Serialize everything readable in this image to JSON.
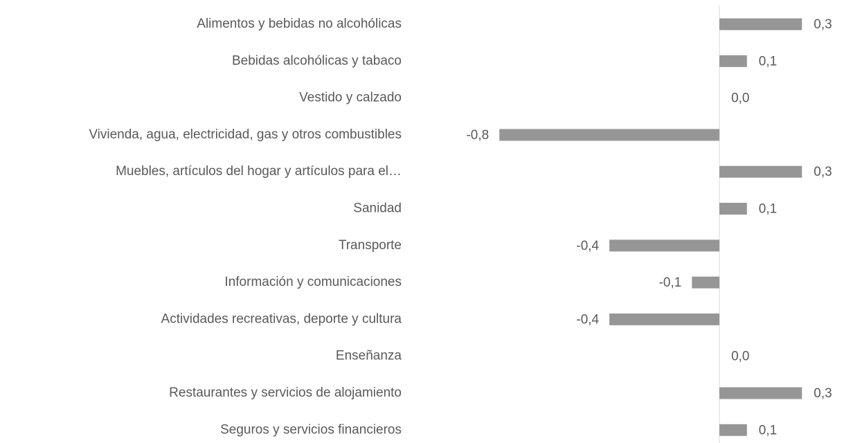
{
  "chart_data": {
    "type": "barh",
    "categories": [
      "Alimentos y bebidas no alcohólicas",
      "Bebidas alcohólicas y tabaco",
      "Vestido y calzado",
      "Vivienda, agua, electricidad, gas y otros combustibles",
      "Muebles, artículos del hogar y artículos para el…",
      "Sanidad",
      "Transporte",
      "Información y comunicaciones",
      "Actividades recreativas, deporte y cultura",
      "Enseñanza",
      "Restaurantes y servicios de alojamiento",
      "Seguros y servicios financieros"
    ],
    "values": [
      0.3,
      0.1,
      0.0,
      -0.8,
      0.3,
      0.1,
      -0.4,
      -0.1,
      -0.4,
      0.0,
      0.3,
      0.1
    ],
    "value_labels": [
      "0,3",
      "0,1",
      "0,0",
      "-0,8",
      "0,3",
      "0,1",
      "-0,4",
      "-0,1",
      "-0,4",
      "0,0",
      "0,3",
      "0,1"
    ],
    "color": "#969696",
    "xlim": [
      -1.1,
      0.4
    ]
  }
}
